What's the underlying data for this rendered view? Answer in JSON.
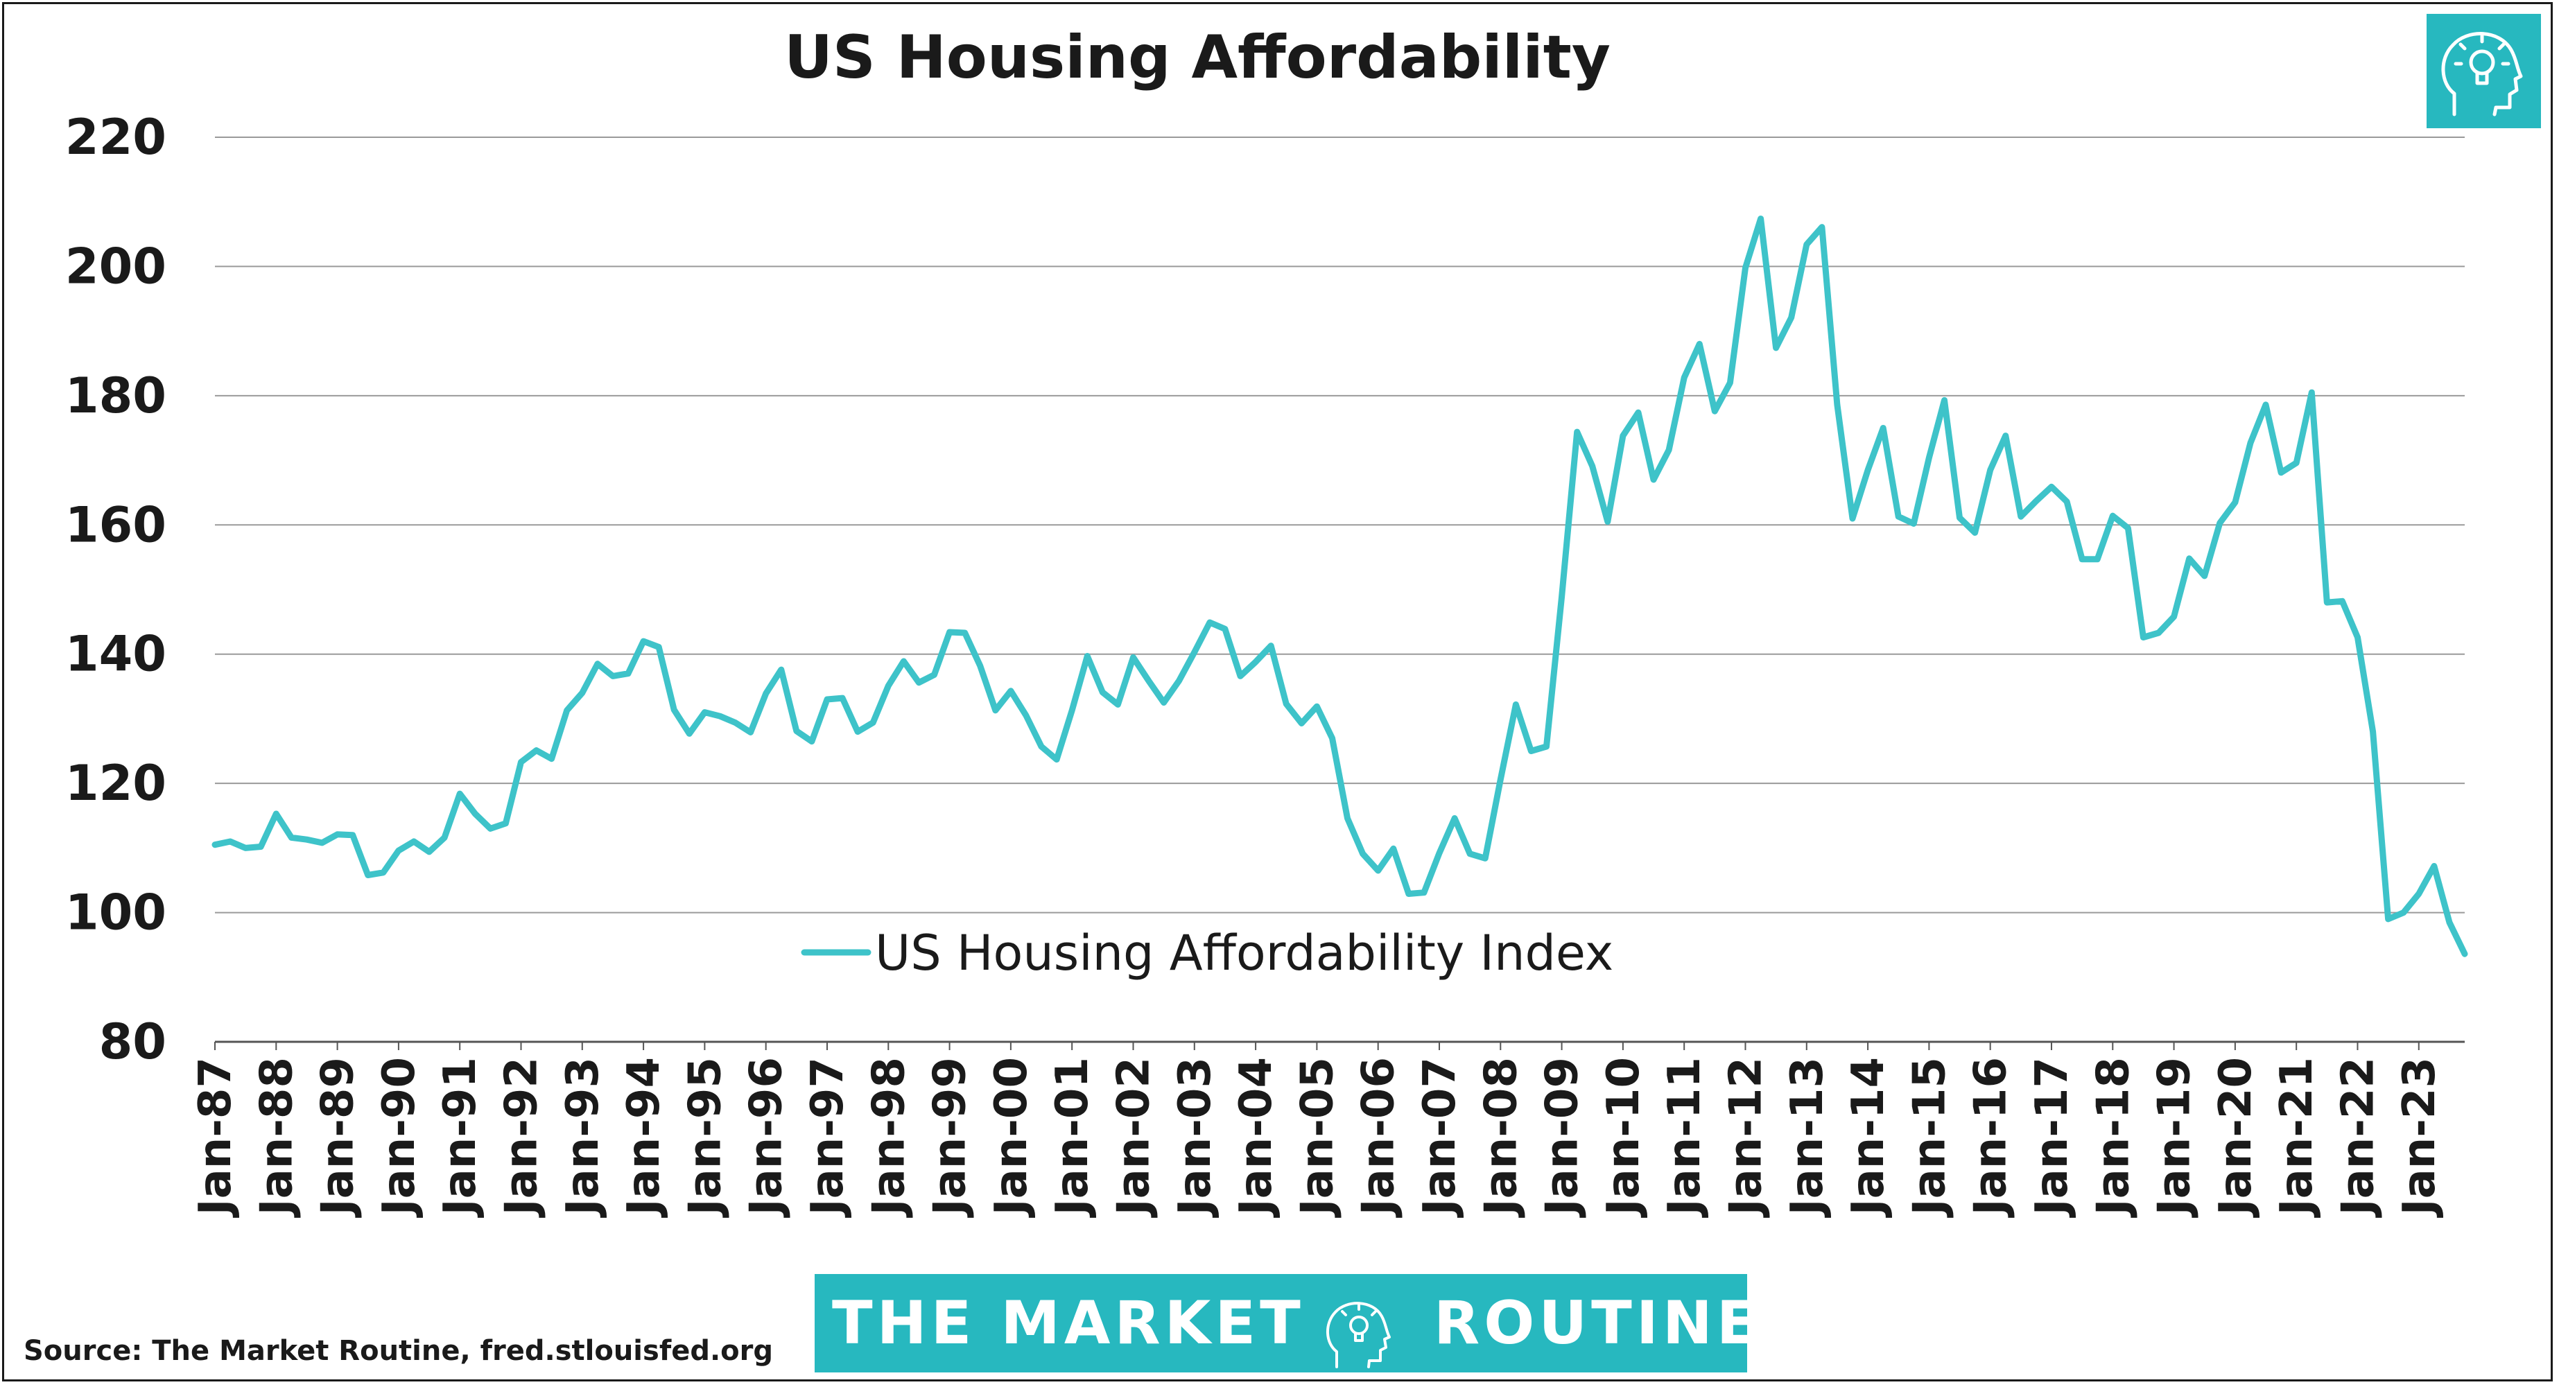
{
  "colors": {
    "line": "#3ec3c9",
    "grid": "#9a9a9a",
    "text": "#1a1a1a",
    "brand": "#27b8bf"
  },
  "icons": [
    "lightbulb-head-logo-icon"
  ],
  "banner": {
    "left": "THE MARKET",
    "right": "ROUTINE"
  },
  "source": "Source: The Market Routine, fred.stlouisfed.org",
  "chart_data": {
    "type": "line",
    "title": "US Housing Affordability",
    "xlabel": "",
    "ylabel": "",
    "ylim": [
      80,
      220
    ],
    "yticks": [
      80,
      100,
      120,
      140,
      160,
      180,
      200,
      220
    ],
    "grid": true,
    "legend_position": "inside-bottom",
    "xlim": [
      "1987-01",
      "1988-01",
      "1989-01",
      "1990-01",
      "1991-01",
      "1992-01",
      "1993-01",
      "1994-01",
      "1995-01",
      "1996-01",
      "1997-01",
      "1998-01",
      "1999-01",
      "2000-01",
      "2001-01",
      "2002-01",
      "2003-01",
      "2004-01",
      "2005-01",
      "2006-01",
      "2007-01",
      "2008-01",
      "2009-01",
      "2010-01",
      "2011-01",
      "2012-01",
      "2013-01",
      "2014-01",
      "2015-01",
      "2016-01",
      "2017-01",
      "2018-01",
      "2019-01",
      "2020-01",
      "2021-01",
      "2022-01",
      "2023-01",
      "2023-10"
    ],
    "x_tick_labels": [
      "Jan-87",
      "Jan-88",
      "Jan-89",
      "Jan-90",
      "Jan-91",
      "Jan-92",
      "Jan-93",
      "Jan-94",
      "Jan-95",
      "Jan-96",
      "Jan-97",
      "Jan-98",
      "Jan-99",
      "Jan-00",
      "Jan-01",
      "Jan-02",
      "Jan-03",
      "Jan-04",
      "Jan-05",
      "Jan-06",
      "Jan-07",
      "Jan-08",
      "Jan-09",
      "Jan-10",
      "Jan-11",
      "Jan-12",
      "Jan-13",
      "Jan-14",
      "Jan-15",
      "Jan-16",
      "Jan-17",
      "Jan-18",
      "Jan-19",
      "Jan-20",
      "Jan-21",
      "Jan-22",
      "Jan-23"
    ],
    "x_tick_dates": [
      "1987-01",
      "1988-01",
      "1989-01",
      "1990-01",
      "1991-01",
      "1992-01",
      "1993-01",
      "1994-01",
      "1995-01",
      "1996-01",
      "1997-01",
      "1998-01",
      "1999-01",
      "2000-01",
      "2001-01",
      "2002-01",
      "2003-01",
      "2004-01",
      "2005-01",
      "2006-01",
      "2007-01",
      "2008-01",
      "2009-01",
      "2010-01",
      "2011-01",
      "2012-01",
      "2013-01",
      "2014-01",
      "2015-01",
      "2016-01",
      "2017-01",
      "2018-01",
      "2019-01",
      "2020-01",
      "2021-01",
      "2022-01",
      "2023-01"
    ],
    "series": [
      {
        "name": "US Housing Affordability Index",
        "x": [
          "1987-01",
          "1987-04",
          "1987-07",
          "1987-10",
          "1988-01",
          "1988-04",
          "1988-07",
          "1988-10",
          "1989-01",
          "1989-04",
          "1989-07",
          "1989-10",
          "1990-01",
          "1990-04",
          "1990-07",
          "1990-10",
          "1991-01",
          "1991-04",
          "1991-07",
          "1991-10",
          "1992-01",
          "1992-04",
          "1992-07",
          "1992-10",
          "1993-01",
          "1993-04",
          "1993-07",
          "1993-10",
          "1994-01",
          "1994-04",
          "1994-07",
          "1994-10",
          "1995-01",
          "1995-04",
          "1995-07",
          "1995-10",
          "1996-01",
          "1996-04",
          "1996-07",
          "1996-10",
          "1997-01",
          "1997-04",
          "1997-07",
          "1997-10",
          "1998-01",
          "1998-04",
          "1998-07",
          "1998-10",
          "1999-01",
          "1999-04",
          "1999-07",
          "1999-10",
          "2000-01",
          "2000-04",
          "2000-07",
          "2000-10",
          "2001-01",
          "2001-04",
          "2001-07",
          "2001-10",
          "2002-01",
          "2002-04",
          "2002-07",
          "2002-10",
          "2003-01",
          "2003-04",
          "2003-07",
          "2003-10",
          "2004-01",
          "2004-04",
          "2004-07",
          "2004-10",
          "2005-01",
          "2005-04",
          "2005-07",
          "2005-10",
          "2006-01",
          "2006-04",
          "2006-07",
          "2006-10",
          "2007-01",
          "2007-04",
          "2007-07",
          "2007-10",
          "2008-01",
          "2008-04",
          "2008-07",
          "2008-10",
          "2009-01",
          "2009-04",
          "2009-07",
          "2009-10",
          "2010-01",
          "2010-04",
          "2010-07",
          "2010-10",
          "2011-01",
          "2011-04",
          "2011-07",
          "2011-10",
          "2012-01",
          "2012-04",
          "2012-07",
          "2012-10",
          "2013-01",
          "2013-04",
          "2013-07",
          "2013-10",
          "2014-01",
          "2014-04",
          "2014-07",
          "2014-10",
          "2015-01",
          "2015-04",
          "2015-07",
          "2015-10",
          "2016-01",
          "2016-04",
          "2016-07",
          "2016-10",
          "2017-01",
          "2017-04",
          "2017-07",
          "2017-10",
          "2018-01",
          "2018-04",
          "2018-07",
          "2018-10",
          "2019-01",
          "2019-04",
          "2019-07",
          "2019-10",
          "2020-01",
          "2020-04",
          "2020-07",
          "2020-10",
          "2021-01",
          "2021-04",
          "2021-07",
          "2021-10",
          "2022-01",
          "2022-04",
          "2022-07",
          "2022-10",
          "2023-01",
          "2023-04",
          "2023-07",
          "2023-10"
        ],
        "values": [
          110.5,
          111,
          110,
          110.2,
          115.3,
          111.6,
          111.3,
          110.8,
          112.1,
          112,
          105.8,
          106.2,
          109.6,
          111,
          109.4,
          111.6,
          118.4,
          115.3,
          113,
          113.8,
          123.3,
          125.1,
          123.8,
          131.3,
          134,
          138.5,
          136.6,
          137,
          142,
          141.1,
          131.4,
          127.7,
          131,
          130.4,
          129.4,
          127.9,
          133.9,
          137.6,
          128.1,
          126.5,
          133,
          133.2,
          128,
          129.4,
          135.1,
          138.9,
          135.6,
          136.8,
          143.4,
          143.3,
          138.2,
          131.3,
          134.3,
          130.5,
          125.7,
          123.7,
          131.3,
          139.7,
          134.1,
          132.2,
          139.5,
          135.9,
          132.5,
          135.9,
          140.3,
          144.9,
          143.9,
          136.6,
          138.8,
          141.3,
          132.3,
          129.3,
          131.9,
          127,
          114.6,
          109.1,
          106.5,
          109.9,
          102.9,
          103.1,
          109.2,
          114.6,
          109.1,
          108.4,
          120.6,
          132.2,
          125,
          125.7,
          148.9,
          174.4,
          169.1,
          160.5,
          173.8,
          177.4,
          167,
          171.6,
          182.8,
          188,
          177.6,
          182,
          199.8,
          207.4,
          187.4,
          192.1,
          203.4,
          206.1,
          178.6,
          161,
          168.5,
          175,
          161.3,
          160.2,
          170.4,
          179.3,
          161.1,
          158.8,
          168.5,
          173.8,
          161.3,
          163.7,
          165.9,
          163.6,
          154.7,
          154.7,
          161.4,
          159.5,
          142.6,
          143.3,
          145.8,
          154.8,
          152.1,
          160.3,
          163.5,
          172.7,
          178.6,
          168.1,
          169.6,
          180.5,
          148,
          148.2,
          142.6,
          128,
          99,
          100,
          102.9,
          107.2,
          98.5,
          93.6
        ]
      }
    ]
  }
}
